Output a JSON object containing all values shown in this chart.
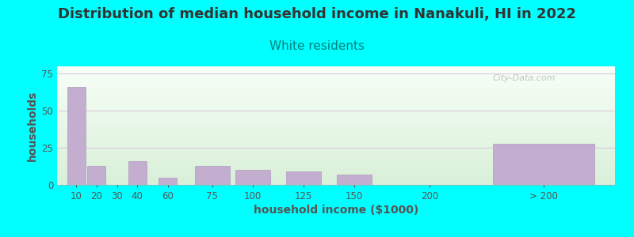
{
  "title": "Distribution of median household income in Nanakuli, HI in 2022",
  "subtitle": "White residents",
  "xlabel": "household income ($1000)",
  "ylabel": "households",
  "title_fontsize": 13,
  "subtitle_fontsize": 11,
  "label_fontsize": 10,
  "background_color": "#00FFFF",
  "bar_color": "#c4aed0",
  "bar_edge_color": "#b09abe",
  "grid_color": "#ddc8e0",
  "title_color": "#333333",
  "subtitle_color": "#008080",
  "axis_label_color": "#555555",
  "ytick_color": "#555555",
  "xtick_color": "#555555",
  "values": [
    66,
    13,
    0,
    16,
    5,
    13,
    10,
    9,
    7,
    0,
    28
  ],
  "bar_left_edges": [
    5,
    15,
    25,
    35,
    50,
    68,
    88,
    113,
    138,
    175,
    215
  ],
  "bar_widths": [
    9,
    9,
    9,
    9,
    9,
    17,
    17,
    17,
    17,
    17,
    50
  ],
  "ylim": [
    0,
    80
  ],
  "yticks": [
    0,
    25,
    50,
    75
  ],
  "xtick_labels": [
    "10",
    "20",
    "30",
    "40",
    "60",
    "75",
    "100",
    "125",
    "150",
    "200",
    "> 200"
  ],
  "xtick_positions": [
    9.5,
    19.5,
    29.5,
    39.5,
    54.5,
    76.5,
    96.5,
    121.5,
    146.5,
    183.5,
    240
  ],
  "xlim_min": 0,
  "xlim_max": 275,
  "watermark": "City-Data.com"
}
